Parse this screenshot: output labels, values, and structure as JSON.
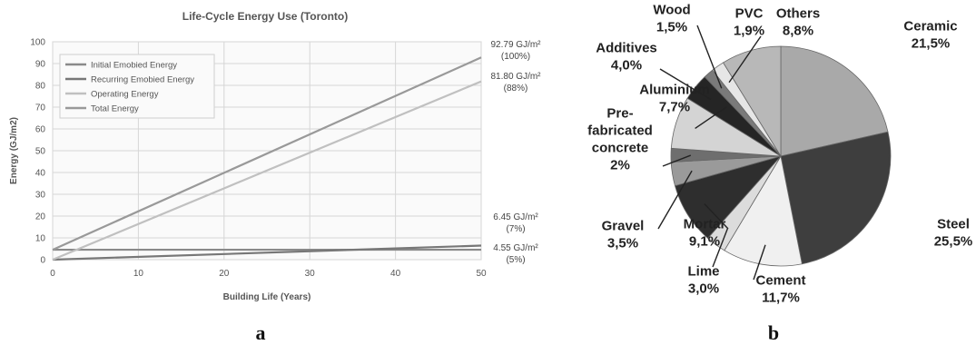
{
  "chart_data": [
    {
      "type": "line",
      "title": "Life-Cycle Energy Use (Toronto)",
      "xlabel": "Building Life (Years)",
      "ylabel": "Energy (GJ/m2)",
      "xlim": [
        0,
        50
      ],
      "ylim": [
        0,
        100
      ],
      "x_ticks": [
        0,
        10,
        20,
        30,
        40,
        50
      ],
      "y_ticks": [
        0,
        10,
        20,
        30,
        40,
        50,
        60,
        70,
        80,
        90,
        100
      ],
      "grid": true,
      "legend_position": "top-left",
      "series": [
        {
          "name": "Initial Emobied Energy",
          "x": [
            0,
            50
          ],
          "y": [
            4.55,
            4.55
          ],
          "color": "#8a8a8a"
        },
        {
          "name": "Recurring Emobied Energy",
          "x": [
            0,
            50
          ],
          "y": [
            0,
            6.45
          ],
          "color": "#777777"
        },
        {
          "name": "Operating Energy",
          "x": [
            0,
            50
          ],
          "y": [
            0,
            81.8
          ],
          "color": "#c0c0c0"
        },
        {
          "name": "Total Energy",
          "x": [
            0,
            50
          ],
          "y": [
            4.55,
            92.79
          ],
          "color": "#999999"
        }
      ],
      "annotations": [
        {
          "value": 92.79,
          "line1": "92.79 GJ/m²",
          "line2": "(100%)"
        },
        {
          "value": 81.8,
          "line1": "81.80 GJ/m²",
          "line2": "(88%)"
        },
        {
          "value": 6.45,
          "line1": "6.45 GJ/m²",
          "line2": "(7%)"
        },
        {
          "value": 4.55,
          "line1": "4.55 GJ/m²",
          "line2": "(5%)"
        }
      ],
      "panel_label": "a"
    },
    {
      "type": "pie",
      "slices": [
        {
          "label": "Ceramic",
          "value": 21.5,
          "display": "21,5%",
          "color": "#a9a9a9"
        },
        {
          "label": "Steel",
          "value": 25.5,
          "display": "25,5%",
          "color": "#3e3e3e"
        },
        {
          "label": "Cement",
          "value": 11.7,
          "display": "11,7%",
          "color": "#f0f0f0"
        },
        {
          "label": "Lime",
          "value": 3.0,
          "display": "3,0%",
          "color": "#dcdcdc"
        },
        {
          "label": "Mortar",
          "value": 9.1,
          "display": "9,1%",
          "color": "#2e2e2e"
        },
        {
          "label": "Gravel",
          "value": 3.5,
          "display": "3,5%",
          "color": "#9a9a9a"
        },
        {
          "label": "Pre-fabricated concrete",
          "label_lines": [
            "Pre-",
            "fabricated",
            "concrete"
          ],
          "value": 2.0,
          "display": "2%",
          "color": "#6e6e6e"
        },
        {
          "label": "Aluminium",
          "value": 7.7,
          "display": "7,7%",
          "color": "#d4d4d4"
        },
        {
          "label": "Additives",
          "value": 4.0,
          "display": "4,0%",
          "color": "#252525"
        },
        {
          "label": "Wood",
          "value": 1.5,
          "display": "1,5%",
          "color": "#7a7a7a"
        },
        {
          "label": "PVC",
          "value": 1.9,
          "display": "1,9%",
          "color": "#e6e6e6"
        },
        {
          "label": "Others",
          "value": 8.8,
          "display": "8,8%",
          "color": "#b8b8b8"
        }
      ],
      "panel_label": "b"
    }
  ]
}
